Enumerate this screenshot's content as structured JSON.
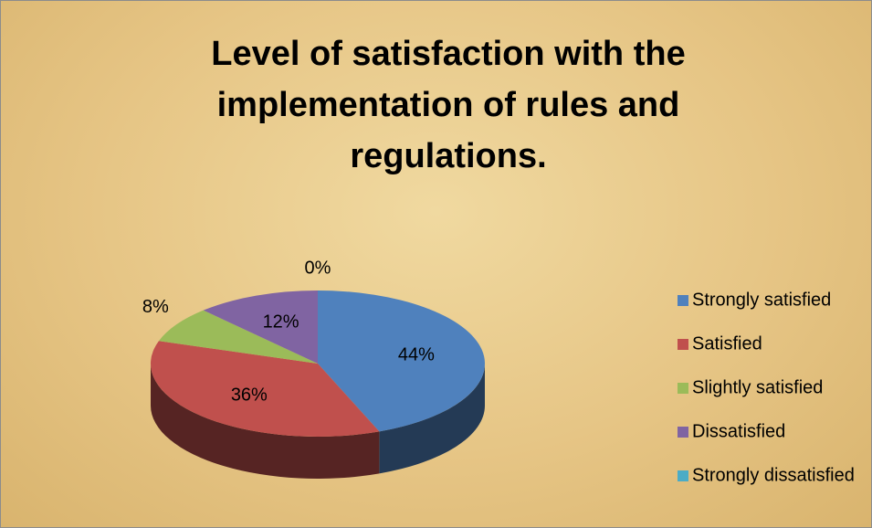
{
  "chart_data": {
    "type": "pie",
    "title": "Level of satisfaction with the implementation of rules and regulations.",
    "categories": [
      "Strongly satisfied",
      "Satisfied",
      "Slightly satisfied",
      "Dissatisfied",
      "Strongly dissatisfied"
    ],
    "values": [
      44,
      36,
      8,
      12,
      0
    ],
    "value_labels": [
      "44%",
      "36%",
      "8%",
      "12%",
      "0%"
    ],
    "colors": [
      "#4f81bd",
      "#c0504d",
      "#9bbb59",
      "#8064a2",
      "#4bacc6"
    ],
    "legend": "right"
  }
}
